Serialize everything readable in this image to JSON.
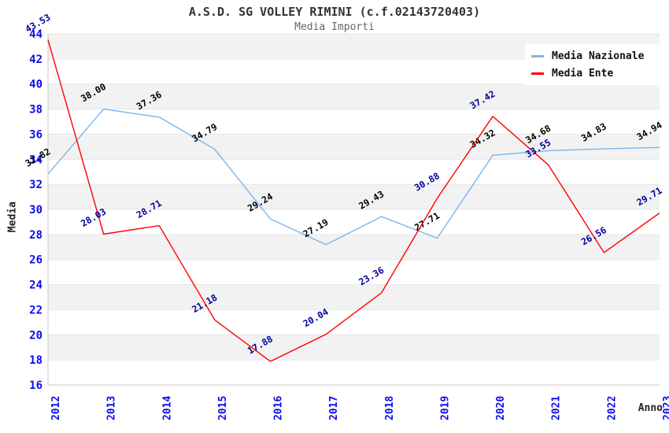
{
  "header": {
    "title": "A.S.D. SG VOLLEY RIMINI (c.f.02143720403)",
    "subtitle": "Media Importi"
  },
  "axes": {
    "y_title": "Media",
    "x_title": "Anno"
  },
  "legend": {
    "items": [
      {
        "label": "Media Nazionale",
        "color": "#7cb5ec"
      },
      {
        "label": "Media Ente",
        "color": "#ff0000"
      }
    ]
  },
  "chart_data": {
    "type": "line",
    "title": "A.S.D. SG VOLLEY RIMINI (c.f.02143720403)",
    "subtitle": "Media Importi",
    "xlabel": "Anno",
    "ylabel": "Media",
    "x": [
      2012,
      2013,
      2014,
      2015,
      2016,
      2017,
      2018,
      2019,
      2020,
      2021,
      2022,
      2023
    ],
    "series": [
      {
        "name": "Media Nazionale",
        "color": "#7cb5ec",
        "label_color": "#000000",
        "values": [
          32.82,
          38.0,
          37.36,
          34.79,
          29.24,
          27.19,
          29.43,
          27.71,
          34.32,
          34.68,
          34.83,
          34.94
        ]
      },
      {
        "name": "Media Ente",
        "color": "#ff0000",
        "label_color": "#000099",
        "values": [
          43.53,
          28.03,
          28.71,
          21.18,
          17.88,
          20.04,
          23.36,
          30.88,
          37.42,
          33.55,
          26.56,
          29.71
        ]
      }
    ],
    "ylim": [
      16,
      44
    ],
    "ytick_step": 2,
    "grid": "horizontal-bands",
    "band_color": "#f2f2f2",
    "axis_line_color": "#c8c8c8",
    "grid_line_color": "#e6e6e6",
    "tick_label_color": "#0b0bee",
    "legend_position": "top-right",
    "value_label_decimals": 2
  }
}
